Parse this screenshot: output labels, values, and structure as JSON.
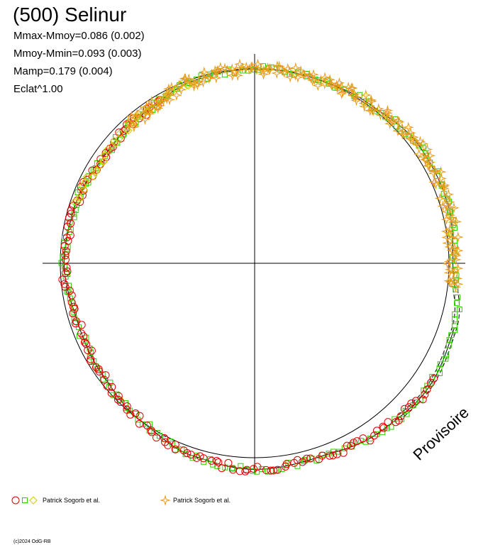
{
  "chart_data": {
    "type": "scatter",
    "title": "(500) Selinur",
    "stats": [
      "Mmax-Mmoy=0.086 (0.002)",
      "Mmoy-Mmin=0.093 (0.003)",
      "Mamp=0.179 (0.004)",
      "Eclat^1.00"
    ],
    "stamp": "Provisoire",
    "legend": [
      {
        "label": "Patrick Sogorb et al.",
        "markers": [
          "circle",
          "square",
          "diamond"
        ],
        "colors": [
          "#e00000",
          "#33cc00",
          "#cccc00"
        ]
      },
      {
        "label": "Patrick Sogorb et al.",
        "markers": [
          "star"
        ],
        "colors": [
          "#e69a1a"
        ]
      }
    ],
    "credit": "(c)2024 OdG-RB",
    "projection": "polar lightcurve, phase 0 at top, clockwise, radius = brightness",
    "reference_circle_radius": 1.0,
    "fit_curve_points": [
      {
        "phase": 0.0,
        "r": 1.0
      },
      {
        "phase": 0.05,
        "r": 1.0
      },
      {
        "phase": 0.1,
        "r": 1.01
      },
      {
        "phase": 0.15,
        "r": 1.04
      },
      {
        "phase": 0.2,
        "r": 1.04
      },
      {
        "phase": 0.25,
        "r": 1.02
      },
      {
        "phase": 0.3,
        "r": 1.08
      },
      {
        "phase": 0.35,
        "r": 1.1
      },
      {
        "phase": 0.4,
        "r": 1.08
      },
      {
        "phase": 0.45,
        "r": 1.05
      },
      {
        "phase": 0.5,
        "r": 1.06
      },
      {
        "phase": 0.55,
        "r": 1.04
      },
      {
        "phase": 0.6,
        "r": 1.0
      },
      {
        "phase": 0.65,
        "r": 0.97
      },
      {
        "phase": 0.7,
        "r": 0.96
      },
      {
        "phase": 0.75,
        "r": 0.98
      },
      {
        "phase": 0.8,
        "r": 0.97
      },
      {
        "phase": 0.85,
        "r": 0.95
      },
      {
        "phase": 0.9,
        "r": 0.96
      },
      {
        "phase": 0.95,
        "r": 0.99
      },
      {
        "phase": 1.0,
        "r": 1.0
      }
    ],
    "series": [
      {
        "name": "Patrick Sogorb et al.",
        "marker": "circle",
        "color": "#e00000",
        "phase_range": [
          0.34,
          0.92
        ]
      },
      {
        "name": "Patrick Sogorb et al.",
        "marker": "square",
        "color": "#33cc00",
        "phase_range": [
          0.0,
          1.0
        ]
      },
      {
        "name": "Patrick Sogorb et al.",
        "marker": "diamond",
        "color": "#cccc00",
        "phase_range": [
          0.8,
          0.95
        ]
      },
      {
        "name": "Patrick Sogorb et al.",
        "marker": "star",
        "color": "#e69a1a",
        "phase_range": [
          0.88,
          0.27
        ]
      }
    ],
    "grid": false
  }
}
